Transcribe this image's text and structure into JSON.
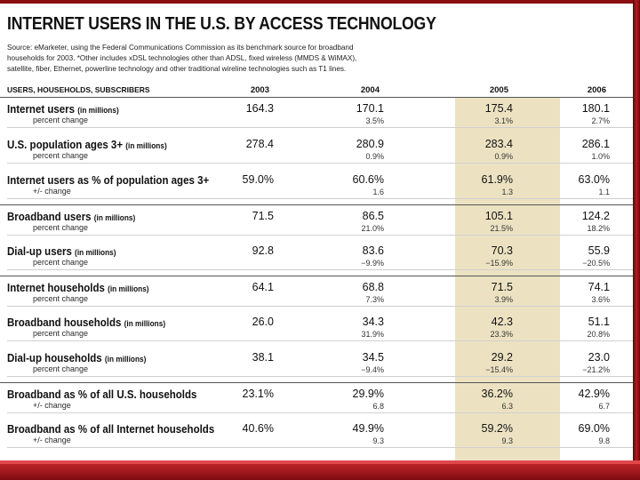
{
  "title": "INTERNET USERS IN THE U.S. BY ACCESS TECHNOLOGY",
  "source_line1": "Source: eMarketer, using the Federal Communications Commission as its benchmark source for broadband",
  "source_line2": "households for 2003. *Other includes xDSL technologies other than ADSL, fixed wireless (MMDS & WiMAX),",
  "source_line3": "satellite, fiber, Ethernet, powerline technology and other traditional wireline technologies such as T1 lines.",
  "table": {
    "header_label": "USERS, HOUSEHOLDS, SUBSCRIBERS",
    "years": [
      "2003",
      "2004",
      "2005",
      "2006"
    ],
    "rows": [
      {
        "label": "Internet users",
        "unit": "(in millions)",
        "sub": "percent change",
        "values": [
          "164.3",
          "170.1",
          "175.4",
          "180.1"
        ],
        "changes": [
          "",
          "3.5%",
          "3.1%",
          "2.7%"
        ]
      },
      {
        "label": "U.S. population ages 3+",
        "unit": "(in millions)",
        "sub": "percent change",
        "values": [
          "278.4",
          "280.9",
          "283.4",
          "286.1"
        ],
        "changes": [
          "",
          "0.9%",
          "0.9%",
          "1.0%"
        ]
      },
      {
        "label": "Internet users as % of population ages 3+",
        "unit": "",
        "sub": "+/- change",
        "values": [
          "59.0%",
          "60.6%",
          "61.9%",
          "63.0%"
        ],
        "changes": [
          "",
          "1.6",
          "1.3",
          "1.1"
        ]
      },
      {
        "label": "Broadband users",
        "unit": "(in millions)",
        "sub": "percent change",
        "values": [
          "71.5",
          "86.5",
          "105.1",
          "124.2"
        ],
        "changes": [
          "",
          "21.0%",
          "21.5%",
          "18.2%"
        ]
      },
      {
        "label": "Dial-up users",
        "unit": "(in millions)",
        "sub": "percent change",
        "values": [
          "92.8",
          "83.6",
          "70.3",
          "55.9"
        ],
        "changes": [
          "",
          "−9.9%",
          "−15.9%",
          "−20.5%"
        ]
      },
      {
        "label": "Internet households",
        "unit": "(in millions)",
        "sub": "percent change",
        "values": [
          "64.1",
          "68.8",
          "71.5",
          "74.1"
        ],
        "changes": [
          "",
          "7.3%",
          "3.9%",
          "3.6%"
        ]
      },
      {
        "label": "Broadband households",
        "unit": "(in millions)",
        "sub": "percent change",
        "values": [
          "26.0",
          "34.3",
          "42.3",
          "51.1"
        ],
        "changes": [
          "",
          "31.9%",
          "23.3%",
          "20.8%"
        ]
      },
      {
        "label": "Dial-up households",
        "unit": "(in millions)",
        "sub": "percent change",
        "values": [
          "38.1",
          "34.5",
          "29.2",
          "23.0"
        ],
        "changes": [
          "",
          "−9.4%",
          "−15.4%",
          "−21.2%"
        ]
      },
      {
        "label": "Broadband as % of all U.S. households",
        "unit": "",
        "sub": "+/- change",
        "values": [
          "23.1%",
          "29.9%",
          "36.2%",
          "42.9%"
        ],
        "changes": [
          "",
          "6.8",
          "6.3",
          "6.7"
        ]
      },
      {
        "label": "Broadband as % of all Internet households",
        "unit": "",
        "sub": "+/- change",
        "values": [
          "40.6%",
          "49.9%",
          "59.2%",
          "69.0%"
        ],
        "changes": [
          "",
          "9.3",
          "9.3",
          "9.8"
        ]
      }
    ]
  },
  "colors": {
    "brand_red": "#a0171c",
    "highlight": "#ece2c2"
  }
}
